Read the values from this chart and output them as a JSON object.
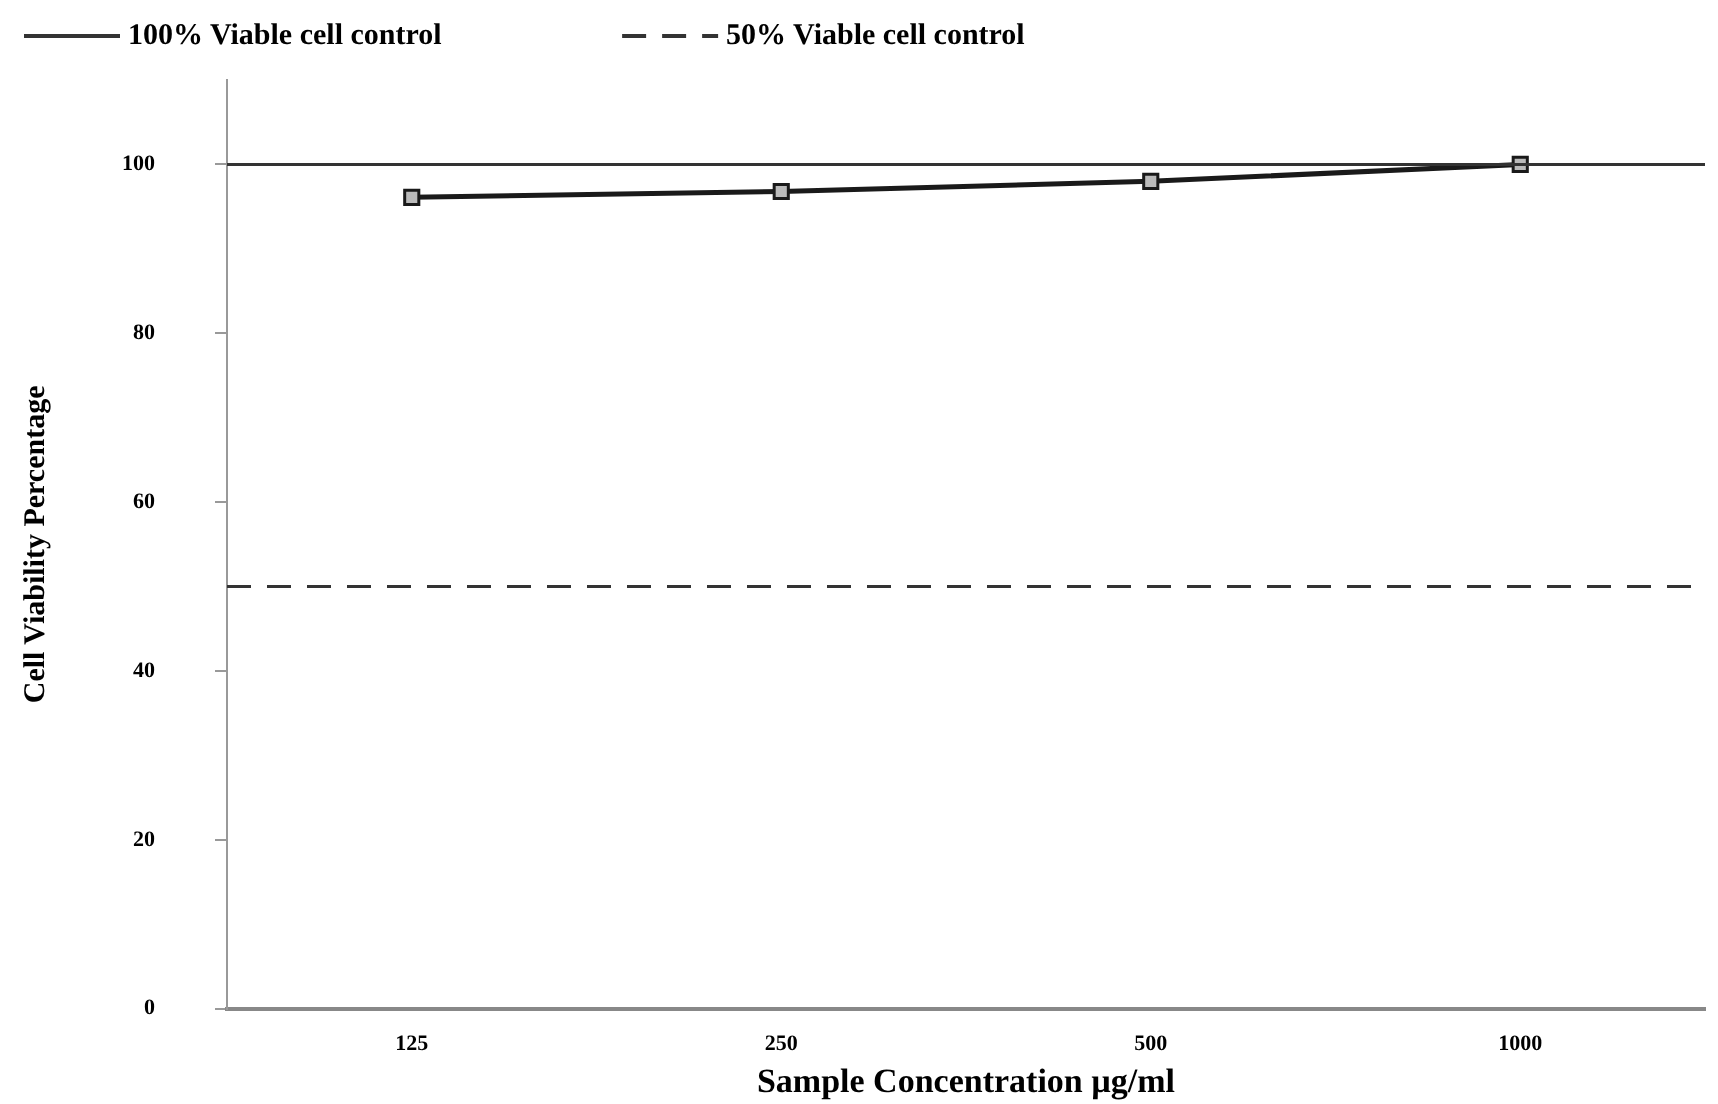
{
  "chart_data": {
    "type": "line",
    "xlabel": "Sample Concentration µg/ml",
    "ylabel": "Cell Viability Percentage",
    "categories": [
      "125",
      "250",
      "500",
      "1000"
    ],
    "series": [
      {
        "color": "#1a1a1a",
        "values": [
          96.1,
          96.8,
          98,
          100
        ]
      }
    ],
    "ylim": [
      0,
      110
    ],
    "yticks": [
      0,
      20,
      40,
      60,
      80,
      100
    ],
    "ref_lines": [
      {
        "axis": "y",
        "value": 100,
        "label": "100% Viable cell control",
        "line_style": "solid",
        "color": "#333333"
      },
      {
        "axis": "y",
        "value": 50,
        "label": "50% Viable cell control",
        "line_style": "dashed",
        "color": "#333333"
      }
    ],
    "marker": "square",
    "line_style": "solid",
    "grid": false,
    "legend": "top"
  }
}
